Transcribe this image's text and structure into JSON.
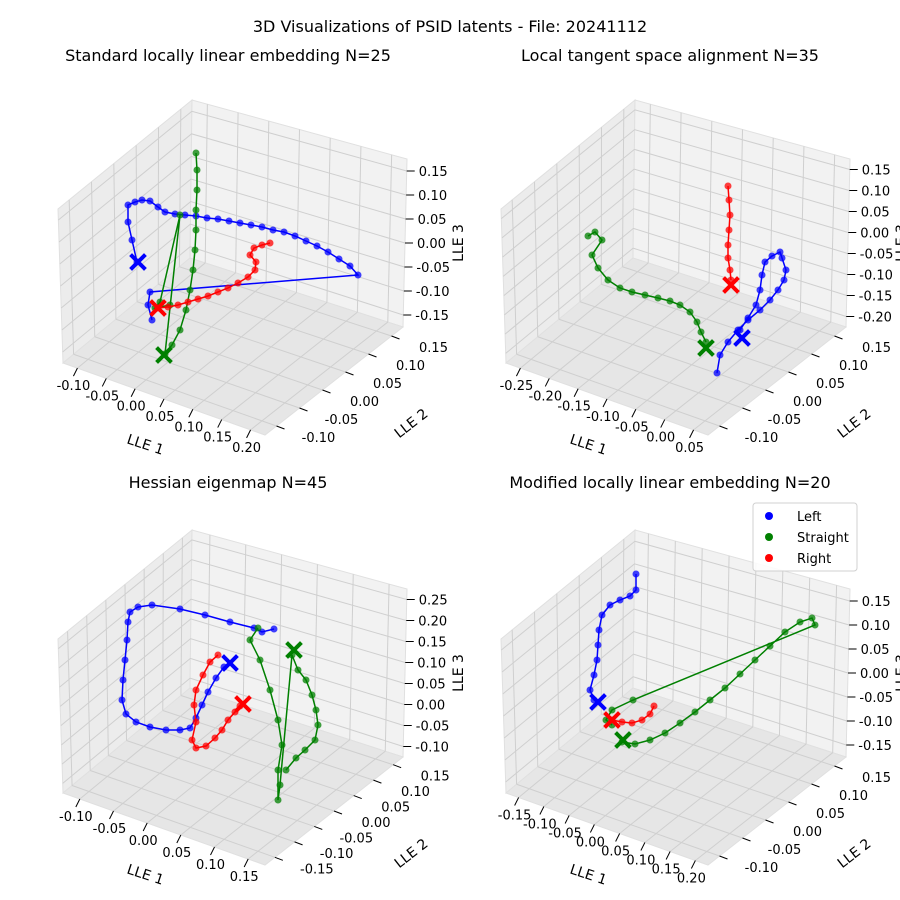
{
  "figure": {
    "suptitle": "3D Visualizations of PSID latents - File: 20241112",
    "legend": [
      {
        "label": "Left",
        "color": "#0000ff"
      },
      {
        "label": "Straight",
        "color": "#008000"
      },
      {
        "label": "Right",
        "color": "#ff0000"
      }
    ]
  },
  "chart_data": [
    {
      "type": "scatter",
      "title": "Standard locally linear embedding N=25",
      "xlabel": "LLE 1",
      "ylabel": "LLE 2",
      "zlabel": "LLE 3",
      "xticks": [
        "-0.10",
        "-0.05",
        "0.00",
        "0.05",
        "0.10",
        "0.15",
        "0.20"
      ],
      "yticks": [
        "-0.10",
        "-0.05",
        "0.00",
        "0.05",
        "0.10",
        "0.15"
      ],
      "zticks": [
        "-0.15",
        "-0.10",
        "-0.05",
        "0.00",
        "0.05",
        "0.10",
        "0.15"
      ],
      "series": [
        {
          "name": "Left",
          "color": "#0000ff",
          "trace": [
            [
              137,
              262
            ],
            [
              132,
              240
            ],
            [
              128,
              222
            ],
            [
              128,
              205
            ],
            [
              135,
              202
            ],
            [
              142,
              200
            ],
            [
              150,
              201
            ],
            [
              158,
              207
            ],
            [
              165,
              212
            ],
            [
              175,
              214
            ],
            [
              185,
              215
            ],
            [
              196,
              216
            ],
            [
              207,
              218
            ],
            [
              218,
              219
            ],
            [
              229,
              221
            ],
            [
              240,
              223
            ],
            [
              251,
              225
            ],
            [
              262,
              227
            ],
            [
              273,
              230
            ],
            [
              284,
              232
            ],
            [
              295,
              236
            ],
            [
              306,
              241
            ],
            [
              317,
              246
            ],
            [
              328,
              252
            ],
            [
              339,
              259
            ],
            [
              350,
              266
            ],
            [
              358,
              275
            ],
            [
              150,
              292
            ],
            [
              148,
              305
            ],
            [
              152,
              320
            ]
          ],
          "end": [
            138,
            262
          ]
        },
        {
          "name": "Straight",
          "color": "#008000",
          "trace": [
            [
              196,
              153
            ],
            [
              197,
              170
            ],
            [
              197,
              190
            ],
            [
              196,
              210
            ],
            [
              196,
              230
            ],
            [
              195,
              250
            ],
            [
              193,
              270
            ],
            [
              190,
              290
            ],
            [
              186,
              310
            ],
            [
              180,
              330
            ],
            [
              172,
              345
            ],
            [
              165,
              354
            ],
            [
              180,
              215
            ],
            [
              160,
              302
            ],
            [
              155,
              308
            ],
            [
              170,
              305
            ]
          ],
          "end": [
            164,
            355
          ]
        },
        {
          "name": "Right",
          "color": "#ff0000",
          "trace": [
            [
              158,
              308
            ],
            [
              168,
              307
            ],
            [
              178,
              305
            ],
            [
              188,
              302
            ],
            [
              198,
              299
            ],
            [
              208,
              296
            ],
            [
              218,
              292
            ],
            [
              228,
              288
            ],
            [
              238,
              283
            ],
            [
              248,
              277
            ],
            [
              255,
              270
            ],
            [
              256,
              262
            ],
            [
              250,
              255
            ],
            [
              254,
              248
            ],
            [
              262,
              245
            ],
            [
              270,
              243
            ]
          ],
          "end": [
            158,
            308
          ]
        }
      ]
    },
    {
      "type": "scatter",
      "title": "Local tangent space alignment N=35",
      "xlabel": "LLE 1",
      "ylabel": "LLE 2",
      "zlabel": "LLE 3",
      "xticks": [
        "-0.25",
        "-0.20",
        "-0.15",
        "-0.10",
        "-0.05",
        "0.00",
        "0.05"
      ],
      "yticks": [
        "-0.10",
        "-0.05",
        "0.00",
        "0.05",
        "0.10",
        "0.15"
      ],
      "zticks": [
        "-0.20",
        "-0.15",
        "-0.10",
        "-0.05",
        "0.00",
        "0.05",
        "0.10",
        "0.15"
      ],
      "series": [
        {
          "name": "Left",
          "color": "#0000ff",
          "trace": [
            [
              717,
              373
            ],
            [
              720,
              355
            ],
            [
              728,
              342
            ],
            [
              738,
              330
            ],
            [
              748,
              320
            ],
            [
              760,
              310
            ],
            [
              770,
              300
            ],
            [
              778,
              290
            ],
            [
              784,
              280
            ],
            [
              786,
              270
            ],
            [
              782,
              258
            ],
            [
              780,
              252
            ],
            [
              772,
              256
            ],
            [
              765,
              262
            ],
            [
              762,
              275
            ],
            [
              760,
              290
            ],
            [
              756,
              305
            ],
            [
              748,
              318
            ],
            [
              740,
              330
            ]
          ],
          "end": [
            742,
            338
          ]
        },
        {
          "name": "Straight",
          "color": "#008000",
          "trace": [
            [
              588,
              236
            ],
            [
              595,
              232
            ],
            [
              602,
              240
            ],
            [
              592,
              255
            ],
            [
              598,
              268
            ],
            [
              608,
              280
            ],
            [
              620,
              288
            ],
            [
              632,
              292
            ],
            [
              645,
              295
            ],
            [
              658,
              298
            ],
            [
              670,
              301
            ],
            [
              680,
              305
            ],
            [
              690,
              312
            ],
            [
              697,
              322
            ],
            [
              701,
              332
            ],
            [
              706,
              342
            ]
          ],
          "end": [
            706,
            348
          ]
        },
        {
          "name": "Right",
          "color": "#ff0000",
          "trace": [
            [
              728,
              186
            ],
            [
              729,
              200
            ],
            [
              730,
              215
            ],
            [
              729,
              230
            ],
            [
              728,
              245
            ],
            [
              728,
              258
            ],
            [
              730,
              270
            ],
            [
              731,
              280
            ]
          ],
          "end": [
            731,
            285
          ]
        }
      ]
    },
    {
      "type": "scatter",
      "title": "Hessian eigenmap N=45",
      "xlabel": "LLE 1",
      "ylabel": "LLE 2",
      "zlabel": "LLE 3",
      "xticks": [
        "-0.10",
        "-0.05",
        "0.00",
        "0.05",
        "0.10",
        "0.15"
      ],
      "yticks": [
        "-0.15",
        "-0.10",
        "-0.05",
        "0.00",
        "0.05",
        "0.10",
        "0.15"
      ],
      "zticks": [
        "-0.10",
        "-0.05",
        "0.00",
        "0.05",
        "0.10",
        "0.15",
        "0.20",
        "0.25"
      ],
      "series": [
        {
          "name": "Left",
          "color": "#0000ff",
          "trace": [
            [
              274,
              629
            ],
            [
              262,
              632
            ],
            [
              254,
              628
            ],
            [
              230,
              622
            ],
            [
              205,
              615
            ],
            [
              180,
              609
            ],
            [
              152,
              605
            ],
            [
              138,
              607
            ],
            [
              130,
              612
            ],
            [
              128,
              622
            ],
            [
              127,
              640
            ],
            [
              125,
              660
            ],
            [
              123,
              680
            ],
            [
              122,
              700
            ],
            [
              126,
              714
            ],
            [
              136,
              722
            ],
            [
              150,
              727
            ],
            [
              166,
              730
            ],
            [
              180,
              730
            ],
            [
              190,
              728
            ],
            [
              196,
              718
            ],
            [
              202,
              705
            ],
            [
              208,
              692
            ],
            [
              216,
              678
            ],
            [
              224,
              667
            ]
          ],
          "end": [
            230,
            663
          ]
        },
        {
          "name": "Straight",
          "color": "#008000",
          "trace": [
            [
              258,
              628
            ],
            [
              250,
              640
            ],
            [
              260,
              660
            ],
            [
              270,
              690
            ],
            [
              278,
              720
            ],
            [
              282,
              745
            ],
            [
              278,
              770
            ],
            [
              278,
              800
            ],
            [
              280,
              785
            ],
            [
              292,
              655
            ],
            [
              298,
              670
            ],
            [
              306,
              680
            ],
            [
              312,
              695
            ],
            [
              316,
              710
            ],
            [
              318,
              725
            ],
            [
              315,
              740
            ],
            [
              305,
              750
            ],
            [
              296,
              758
            ],
            [
              286,
              770
            ]
          ],
          "end": [
            294,
            650
          ]
        },
        {
          "name": "Right",
          "color": "#ff0000",
          "trace": [
            [
              218,
              655
            ],
            [
              210,
              662
            ],
            [
              203,
              675
            ],
            [
              196,
              690
            ],
            [
              194,
              705
            ],
            [
              196,
              722
            ],
            [
              192,
              740
            ],
            [
              196,
              748
            ],
            [
              206,
              746
            ],
            [
              215,
              738
            ],
            [
              222,
              730
            ],
            [
              228,
              720
            ],
            [
              235,
              712
            ],
            [
              240,
              706
            ]
          ],
          "end": [
            243,
            704
          ]
        }
      ]
    },
    {
      "type": "scatter",
      "title": "Modified locally linear embedding N=20",
      "xlabel": "LLE 1",
      "ylabel": "LLE 2",
      "zlabel": "LLE 3",
      "xticks": [
        "-0.15",
        "-0.10",
        "-0.05",
        "0.00",
        "0.05",
        "0.10",
        "0.15",
        "0.20"
      ],
      "yticks": [
        "-0.10",
        "-0.05",
        "0.00",
        "0.05",
        "0.10",
        "0.15"
      ],
      "zticks": [
        "-0.15",
        "-0.10",
        "-0.05",
        "0.00",
        "0.05",
        "0.10",
        "0.15"
      ],
      "series": [
        {
          "name": "Left",
          "color": "#0000ff",
          "trace": [
            [
              636,
              574
            ],
            [
              636,
              590
            ],
            [
              630,
              596
            ],
            [
              620,
              600
            ],
            [
              610,
              605
            ],
            [
              602,
              615
            ],
            [
              599,
              630
            ],
            [
              598,
              645
            ],
            [
              597,
              660
            ],
            [
              594,
              675
            ],
            [
              590,
              690
            ],
            [
              594,
              700
            ]
          ],
          "end": [
            598,
            702
          ]
        },
        {
          "name": "Straight",
          "color": "#008000",
          "trace": [
            [
              622,
              742
            ],
            [
              635,
              744
            ],
            [
              650,
              740
            ],
            [
              665,
              733
            ],
            [
              680,
              723
            ],
            [
              695,
              712
            ],
            [
              710,
              700
            ],
            [
              725,
              688
            ],
            [
              740,
              674
            ],
            [
              755,
              660
            ],
            [
              770,
              646
            ],
            [
              785,
              632
            ],
            [
              800,
              622
            ],
            [
              812,
              618
            ],
            [
              815,
              625
            ],
            [
              633,
              700
            ],
            [
              612,
              710
            ],
            [
              606,
              720
            ],
            [
              612,
              725
            ]
          ],
          "end": [
            623,
            740
          ]
        },
        {
          "name": "Right",
          "color": "#ff0000",
          "trace": [
            [
              612,
              720
            ],
            [
              622,
              722
            ],
            [
              632,
              723
            ],
            [
              642,
              720
            ],
            [
              650,
              714
            ],
            [
              654,
              706
            ]
          ],
          "end": [
            612,
            720
          ]
        }
      ]
    }
  ]
}
